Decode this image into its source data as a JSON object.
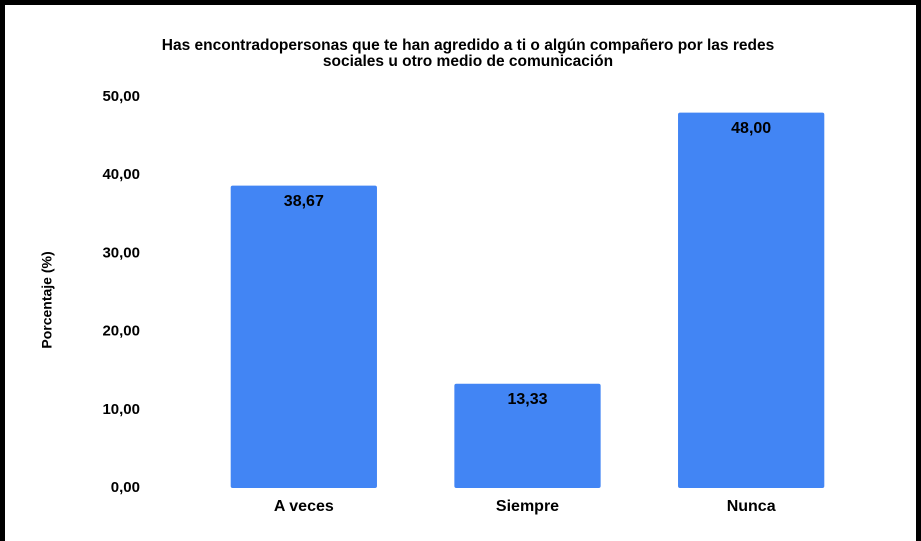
{
  "chart_data": {
    "type": "bar",
    "title": [
      "Has encontradopersonas que te han agredido a ti o algún compañero por las redes",
      "sociales u otro medio de comunicación"
    ],
    "y_label": "Porcentaje (%)",
    "categories": [
      "A veces",
      "Siempre",
      "Nunca"
    ],
    "values": [
      38.67,
      13.33,
      48.0
    ],
    "value_labels": [
      "38,67",
      "13,33",
      "48,00"
    ],
    "color": "#4285f4",
    "ylim": [
      0,
      50
    ],
    "yticks": [
      {
        "value": 0,
        "label": "0,00"
      },
      {
        "value": 10,
        "label": "10,00"
      },
      {
        "value": 20,
        "label": "20,00"
      },
      {
        "value": 30,
        "label": "30,00"
      },
      {
        "value": 40,
        "label": "40,00"
      },
      {
        "value": 50,
        "label": "50,00"
      }
    ],
    "grid": false
  }
}
